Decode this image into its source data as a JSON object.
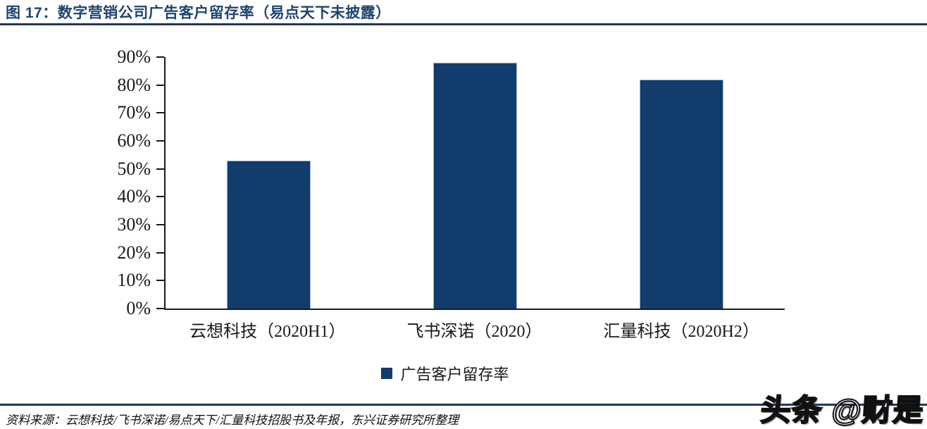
{
  "title": {
    "text": "图 17：数字营销公司广告客户留存率（易点天下未披露）"
  },
  "chart_data": {
    "type": "bar",
    "title": "数字营销公司广告客户留存率（易点天下未披露）",
    "categories": [
      "云想科技（2020H1）",
      "飞书深诺（2020）",
      "汇量科技（2020H2）"
    ],
    "series": [
      {
        "name": "广告客户留存率",
        "values": [
          53,
          88,
          82
        ]
      }
    ],
    "unit": "%",
    "xlabel": "",
    "ylabel": "",
    "ylim": [
      0,
      90
    ],
    "ytick_step": 10,
    "yticks": [
      "0%",
      "10%",
      "20%",
      "30%",
      "40%",
      "50%",
      "60%",
      "70%",
      "80%",
      "90%"
    ],
    "grid": false,
    "legend_position": "bottom",
    "bar_color": "#113C6C"
  },
  "legend": {
    "label": "广告客户留存率",
    "swatch_color": "#113C6C"
  },
  "footer": {
    "source": "资料来源：云想科技/飞书深诺/易点天下/汇量科技招股书及年报，东兴证券研究所整理"
  },
  "watermark": {
    "text": "头条 @财是"
  },
  "colors": {
    "bar": "#113C6C",
    "title": "#1E4470",
    "rule": "#1F3864",
    "axis": "#1a1a1a"
  }
}
